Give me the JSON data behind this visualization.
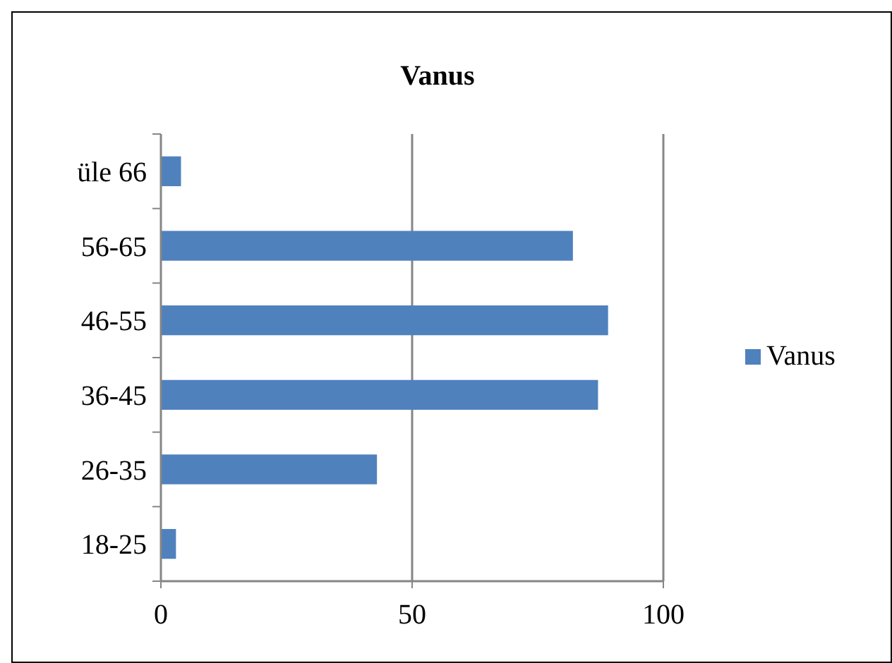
{
  "chart_data": {
    "type": "bar",
    "title": "Vanus",
    "orientation": "horizontal",
    "categories": [
      "üle 66",
      "56-65",
      "46-55",
      "36-45",
      "26-35",
      "18-25"
    ],
    "series": [
      {
        "name": "Vanus",
        "color": "#4f81bd",
        "values": [
          4,
          82,
          89,
          87,
          43,
          3
        ]
      }
    ],
    "xlim": [
      0,
      100
    ],
    "xticks": [
      0,
      50,
      100
    ],
    "grid": "x",
    "legend": "right"
  }
}
